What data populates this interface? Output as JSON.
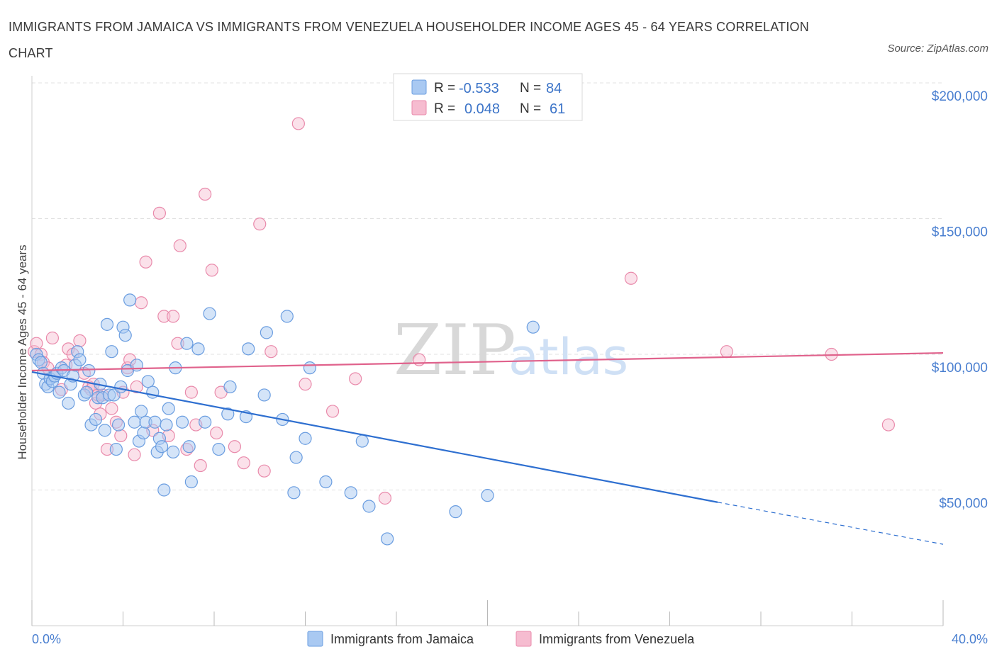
{
  "header": {
    "title": "IMMIGRANTS FROM JAMAICA VS IMMIGRANTS FROM VENEZUELA HOUSEHOLDER INCOME AGES 45 - 64 YEARS CORRELATION CHART",
    "source": "Source: ZipAtlas.com"
  },
  "watermark": {
    "part1": "ZIP",
    "part2": "atlas"
  },
  "legend": {
    "jamaica": {
      "r_label": "R =",
      "r_value": "-0.533",
      "n_label": "N =",
      "n_value": "84"
    },
    "venezuela": {
      "r_label": "R =",
      "r_value": "0.048",
      "n_label": "N =",
      "n_value": "61"
    }
  },
  "colors": {
    "jamaica_fill": "#a9c9f2",
    "jamaica_stroke": "#6a9de0",
    "jamaica_line": "#2e6fd0",
    "venezuela_fill": "#f6bcd0",
    "venezuela_stroke": "#e98aab",
    "venezuela_line": "#e0628c",
    "grid": "#e0e0e0",
    "tick_text": "#4a7fd0"
  },
  "chart_data": {
    "type": "scatter",
    "title": "IMMIGRANTS FROM JAMAICA VS IMMIGRANTS FROM VENEZUELA HOUSEHOLDER INCOME AGES 45 - 64 YEARS CORRELATION CHART",
    "xlabel": "",
    "ylabel": "Householder Income Ages 45 - 64 years",
    "xlim": [
      0,
      40
    ],
    "ylim": [
      0,
      210000
    ],
    "x_tick_labels": [
      "0.0%",
      "40.0%"
    ],
    "y_ticks": [
      50000,
      100000,
      150000,
      200000
    ],
    "y_tick_labels": [
      "$50,000",
      "$100,000",
      "$150,000",
      "$200,000"
    ],
    "grid": true,
    "legend_position": "top-center",
    "series": [
      {
        "name": "Immigrants from Jamaica",
        "R": -0.533,
        "N": 84,
        "trend": {
          "x0": 0,
          "y0": 93500,
          "x1": 30.1,
          "y1": 45500,
          "dashed_to_x": 40,
          "dashed_to_y": 30000
        },
        "points": [
          [
            0.2,
            100000
          ],
          [
            0.3,
            98000
          ],
          [
            0.4,
            97000
          ],
          [
            0.5,
            93000
          ],
          [
            0.6,
            89000
          ],
          [
            0.7,
            88000
          ],
          [
            0.8,
            91000
          ],
          [
            0.9,
            90000
          ],
          [
            1.0,
            92000
          ],
          [
            1.1,
            93000
          ],
          [
            1.2,
            86000
          ],
          [
            1.3,
            95000
          ],
          [
            1.4,
            94000
          ],
          [
            1.6,
            82000
          ],
          [
            1.7,
            89000
          ],
          [
            1.8,
            92000
          ],
          [
            1.9,
            96000
          ],
          [
            2.0,
            101000
          ],
          [
            2.1,
            98000
          ],
          [
            2.3,
            85000
          ],
          [
            2.4,
            86000
          ],
          [
            2.5,
            94000
          ],
          [
            2.6,
            74000
          ],
          [
            2.8,
            76000
          ],
          [
            2.9,
            84000
          ],
          [
            3.0,
            89000
          ],
          [
            3.1,
            84000
          ],
          [
            3.2,
            72000
          ],
          [
            3.3,
            111000
          ],
          [
            3.4,
            85000
          ],
          [
            3.5,
            101000
          ],
          [
            3.6,
            85000
          ],
          [
            3.7,
            65000
          ],
          [
            3.8,
            74000
          ],
          [
            3.9,
            88000
          ],
          [
            4.0,
            110000
          ],
          [
            4.1,
            107000
          ],
          [
            4.2,
            94000
          ],
          [
            4.3,
            120000
          ],
          [
            4.5,
            75000
          ],
          [
            4.6,
            96000
          ],
          [
            4.7,
            68000
          ],
          [
            4.8,
            79000
          ],
          [
            4.9,
            71000
          ],
          [
            5.0,
            75000
          ],
          [
            5.1,
            90000
          ],
          [
            5.3,
            86000
          ],
          [
            5.4,
            75000
          ],
          [
            5.5,
            64000
          ],
          [
            5.6,
            69000
          ],
          [
            5.7,
            66000
          ],
          [
            5.8,
            50000
          ],
          [
            5.9,
            74000
          ],
          [
            6.0,
            80000
          ],
          [
            6.2,
            64000
          ],
          [
            6.3,
            95000
          ],
          [
            6.6,
            75000
          ],
          [
            6.8,
            104000
          ],
          [
            6.9,
            66000
          ],
          [
            7.0,
            53000
          ],
          [
            7.3,
            102000
          ],
          [
            7.6,
            75000
          ],
          [
            7.8,
            115000
          ],
          [
            8.2,
            65000
          ],
          [
            8.6,
            78000
          ],
          [
            8.7,
            88000
          ],
          [
            9.4,
            77000
          ],
          [
            9.5,
            102000
          ],
          [
            10.2,
            85000
          ],
          [
            10.3,
            108000
          ],
          [
            11.0,
            76000
          ],
          [
            11.2,
            114000
          ],
          [
            11.5,
            49000
          ],
          [
            11.6,
            62000
          ],
          [
            12.0,
            69000
          ],
          [
            12.2,
            95000
          ],
          [
            12.9,
            53000
          ],
          [
            14.0,
            49000
          ],
          [
            14.5,
            68000
          ],
          [
            14.8,
            44000
          ],
          [
            15.6,
            32000
          ],
          [
            18.6,
            42000
          ],
          [
            20.0,
            48000
          ],
          [
            22.0,
            110000
          ]
        ]
      },
      {
        "name": "Immigrants from Venezuela",
        "R": 0.048,
        "N": 61,
        "trend": {
          "x0": 0,
          "y0": 94000,
          "x1": 40,
          "y1": 100500
        },
        "points": [
          [
            0.1,
            101000
          ],
          [
            0.2,
            104000
          ],
          [
            0.4,
            100000
          ],
          [
            0.5,
            97000
          ],
          [
            0.7,
            95000
          ],
          [
            0.9,
            106000
          ],
          [
            1.1,
            93000
          ],
          [
            1.3,
            87000
          ],
          [
            1.5,
            96000
          ],
          [
            1.6,
            102000
          ],
          [
            1.8,
            100000
          ],
          [
            2.1,
            105000
          ],
          [
            2.3,
            93000
          ],
          [
            2.5,
            88000
          ],
          [
            2.6,
            87000
          ],
          [
            2.7,
            89000
          ],
          [
            2.8,
            82000
          ],
          [
            2.9,
            85000
          ],
          [
            3.0,
            78000
          ],
          [
            3.1,
            85000
          ],
          [
            3.3,
            65000
          ],
          [
            3.5,
            80000
          ],
          [
            3.7,
            75000
          ],
          [
            3.9,
            70000
          ],
          [
            4.0,
            86000
          ],
          [
            4.2,
            95000
          ],
          [
            4.3,
            98000
          ],
          [
            4.5,
            63000
          ],
          [
            4.6,
            88000
          ],
          [
            4.8,
            119000
          ],
          [
            5.0,
            134000
          ],
          [
            5.3,
            72000
          ],
          [
            5.6,
            152000
          ],
          [
            5.8,
            114000
          ],
          [
            6.0,
            70000
          ],
          [
            6.2,
            114000
          ],
          [
            6.4,
            104000
          ],
          [
            6.5,
            140000
          ],
          [
            6.8,
            65000
          ],
          [
            7.0,
            86000
          ],
          [
            7.2,
            74000
          ],
          [
            7.4,
            59000
          ],
          [
            7.6,
            159000
          ],
          [
            7.9,
            131000
          ],
          [
            8.1,
            71000
          ],
          [
            8.3,
            86000
          ],
          [
            8.9,
            66000
          ],
          [
            9.3,
            60000
          ],
          [
            10.0,
            148000
          ],
          [
            10.2,
            57000
          ],
          [
            10.5,
            101000
          ],
          [
            11.7,
            185000
          ],
          [
            12.0,
            89000
          ],
          [
            13.2,
            79000
          ],
          [
            14.2,
            91000
          ],
          [
            15.5,
            47000
          ],
          [
            17.0,
            98000
          ],
          [
            26.3,
            128000
          ],
          [
            30.5,
            101000
          ],
          [
            35.1,
            100000
          ],
          [
            37.6,
            74000
          ]
        ]
      }
    ]
  },
  "bottom_legend": {
    "jamaica": "Immigrants from Jamaica",
    "venezuela": "Immigrants from Venezuela"
  }
}
